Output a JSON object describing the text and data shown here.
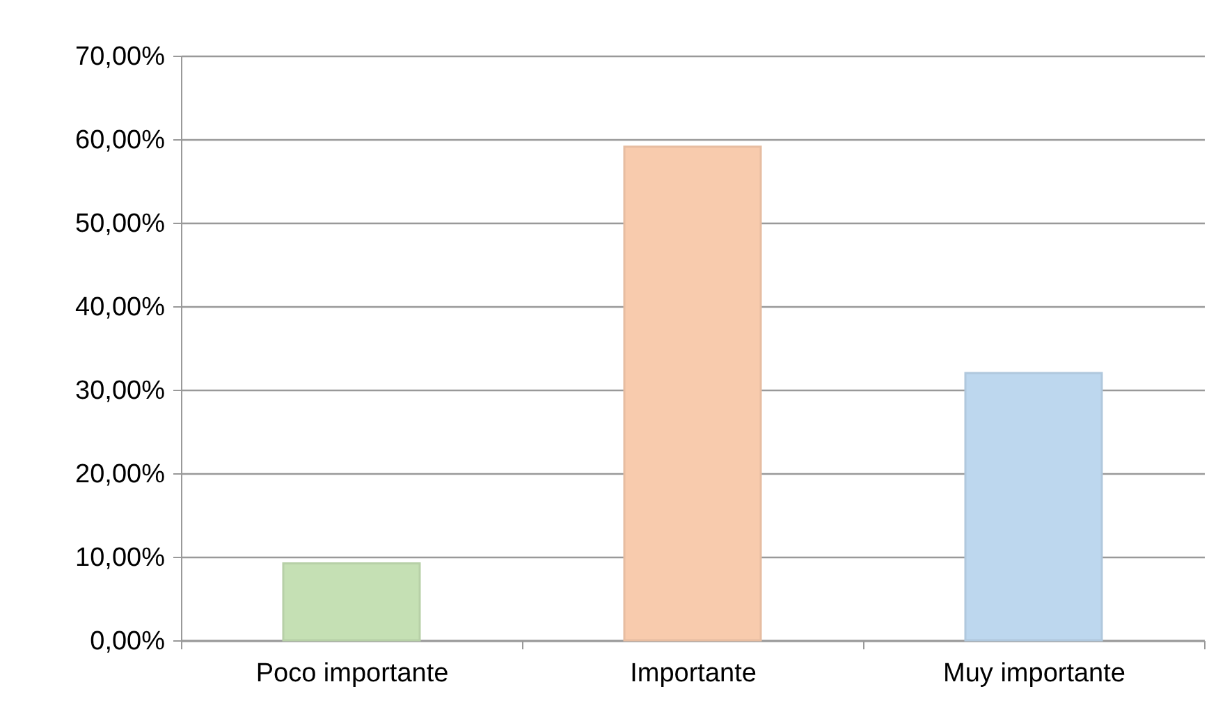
{
  "chart_data": {
    "type": "bar",
    "categories": [
      "Poco importante",
      "Importante",
      "Muy importante"
    ],
    "values": [
      9.2,
      59.1,
      32.0
    ],
    "colors": [
      "#c5e0b4",
      "#f8cbad",
      "#bdd7ee"
    ],
    "ylim": [
      0,
      70
    ],
    "yticks": [
      {
        "value": 0,
        "label": "0,00%"
      },
      {
        "value": 10,
        "label": "10,00%"
      },
      {
        "value": 20,
        "label": "20,00%"
      },
      {
        "value": 30,
        "label": "30,00%"
      },
      {
        "value": 40,
        "label": "40,00%"
      },
      {
        "value": 50,
        "label": "50,00%"
      },
      {
        "value": 60,
        "label": "60,00%"
      },
      {
        "value": 70,
        "label": "70,00%"
      }
    ],
    "grid": "y"
  }
}
